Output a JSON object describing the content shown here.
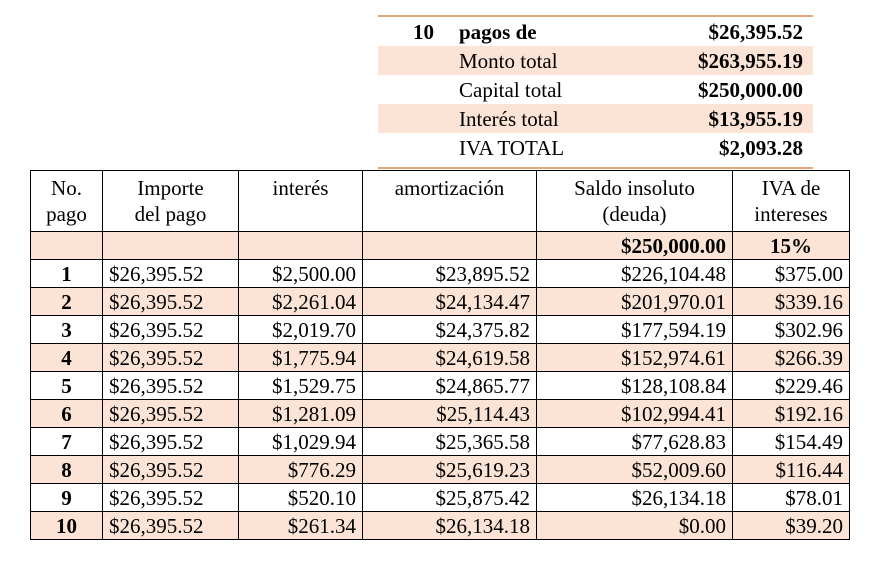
{
  "summary": {
    "payments_count": "10",
    "payments_label": "pagos de",
    "payment_amount": "$26,395.52",
    "rows": [
      {
        "label": "Monto total",
        "value": "$263,955.19"
      },
      {
        "label": "Capital total",
        "value": "$250,000.00"
      },
      {
        "label": "Interés total",
        "value": "$13,955.19"
      },
      {
        "label": "IVA TOTAL",
        "value": "$2,093.28"
      }
    ]
  },
  "table": {
    "headers": {
      "no_pago": [
        "No.",
        "pago"
      ],
      "importe": [
        "Importe",
        "del pago"
      ],
      "interes": [
        "interés"
      ],
      "amortizacion": [
        "amortización"
      ],
      "saldo": [
        "Saldo insoluto",
        "(deuda)"
      ],
      "iva": [
        "IVA de",
        "intereses"
      ]
    },
    "initial_row": {
      "saldo": "$250,000.00",
      "iva_rate": "15%"
    },
    "rows": [
      {
        "no": "1",
        "importe": "$26,395.52",
        "interes": "$2,500.00",
        "amortizacion": "$23,895.52",
        "saldo": "$226,104.48",
        "iva": "$375.00"
      },
      {
        "no": "2",
        "importe": "$26,395.52",
        "interes": "$2,261.04",
        "amortizacion": "$24,134.47",
        "saldo": "$201,970.01",
        "iva": "$339.16"
      },
      {
        "no": "3",
        "importe": "$26,395.52",
        "interes": "$2,019.70",
        "amortizacion": "$24,375.82",
        "saldo": "$177,594.19",
        "iva": "$302.96"
      },
      {
        "no": "4",
        "importe": "$26,395.52",
        "interes": "$1,775.94",
        "amortizacion": "$24,619.58",
        "saldo": "$152,974.61",
        "iva": "$266.39"
      },
      {
        "no": "5",
        "importe": "$26,395.52",
        "interes": "$1,529.75",
        "amortizacion": "$24,865.77",
        "saldo": "$128,108.84",
        "iva": "$229.46"
      },
      {
        "no": "6",
        "importe": "$26,395.52",
        "interes": "$1,281.09",
        "amortizacion": "$25,114.43",
        "saldo": "$102,994.41",
        "iva": "$192.16"
      },
      {
        "no": "7",
        "importe": "$26,395.52",
        "interes": "$1,029.94",
        "amortizacion": "$25,365.58",
        "saldo": "$77,628.83",
        "iva": "$154.49"
      },
      {
        "no": "8",
        "importe": "$26,395.52",
        "interes": "$776.29",
        "amortizacion": "$25,619.23",
        "saldo": "$52,009.60",
        "iva": "$116.44"
      },
      {
        "no": "9",
        "importe": "$26,395.52",
        "interes": "$520.10",
        "amortizacion": "$25,875.42",
        "saldo": "$26,134.18",
        "iva": "$78.01"
      },
      {
        "no": "10",
        "importe": "$26,395.52",
        "interes": "$261.34",
        "amortizacion": "$26,134.18",
        "saldo": "$0.00",
        "iva": "$39.20"
      }
    ]
  },
  "colors": {
    "shade": "#fbe3d5",
    "accent_line": "#e6a57e"
  }
}
